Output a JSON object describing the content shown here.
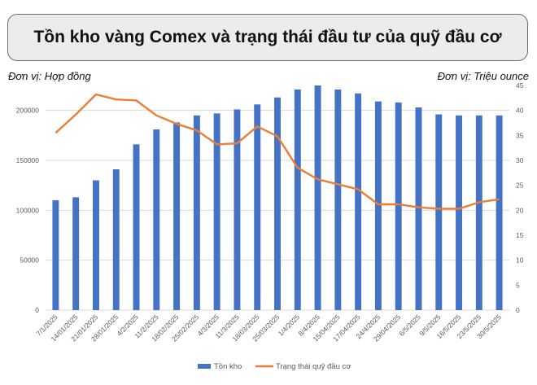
{
  "title": "Tồn kho vàng Comex và trạng thái đầu tư của quỹ đầu cơ",
  "unit_left": "Đơn vị: Hợp đồng",
  "unit_right": "Đơn vị: Triệu ounce",
  "colors": {
    "bars": "#4472c4",
    "line": "#ed7d31",
    "grid": "#d9d9d9"
  },
  "chart_data": {
    "type": "bar",
    "categories": [
      "7/1/2025",
      "14/01/2025",
      "21/01/2025",
      "28/01/2025",
      "4/2/2025",
      "11/2/2025",
      "18/02/2025",
      "25/02/2025",
      "4/3/2025",
      "11/3/2025",
      "18/03/2025",
      "25/03/2025",
      "1/4/2025",
      "8/4/2025",
      "15/04/2025",
      "17/04/2025",
      "24/4/2025",
      "29/04/2025",
      "6/5/2025",
      "9/5/2025",
      "16/5/2025",
      "23/5/2025",
      "30/5/2025"
    ],
    "y_left": {
      "ticks": [
        0,
        50000,
        100000,
        150000,
        200000
      ],
      "ylim": [
        0,
        225000
      ]
    },
    "y_right": {
      "ticks": [
        0,
        5,
        10,
        15,
        20,
        25,
        30,
        35,
        40,
        45
      ],
      "ylim": [
        0,
        45
      ]
    },
    "series": [
      {
        "name": "Tồn kho",
        "type": "bar",
        "axis": "left",
        "values": [
          110000,
          113000,
          130000,
          141000,
          166000,
          181000,
          188000,
          195000,
          197000,
          201000,
          206000,
          213000,
          221000,
          225000,
          221000,
          217000,
          209000,
          208000,
          203000,
          196000,
          195000,
          195000,
          195000
        ]
      },
      {
        "name": "Trạng thái quỹ đầu cơ",
        "type": "line",
        "axis": "right",
        "values": [
          35.5,
          39.2,
          43.2,
          42.2,
          42.0,
          39.0,
          37.3,
          36.0,
          33.2,
          33.4,
          36.8,
          34.8,
          28.5,
          26.2,
          25.2,
          24.2,
          21.2,
          21.2,
          20.6,
          20.3,
          20.3,
          21.6,
          22.2
        ]
      }
    ],
    "legend": [
      "Tồn kho",
      "Trạng thái quỹ đầu cơ"
    ],
    "legend_position": "bottom",
    "grid": true
  }
}
